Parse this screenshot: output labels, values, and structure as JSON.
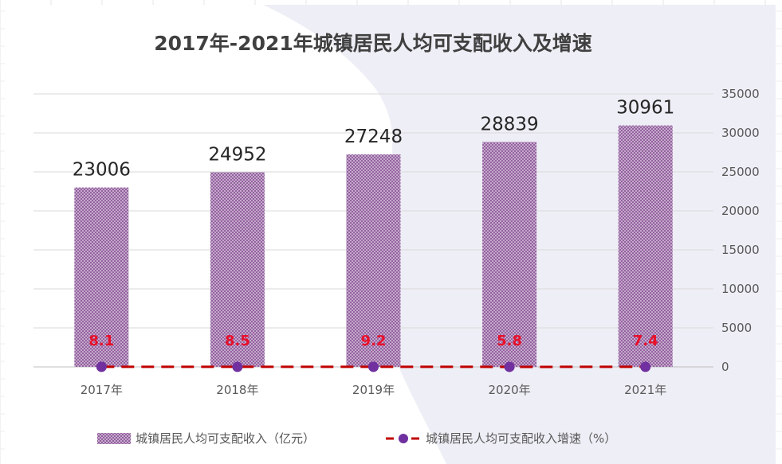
{
  "chart_data": {
    "type": "bar",
    "title": "2017年-2021年城镇居民人均可支配收入及增速",
    "categories": [
      "2017年",
      "2018年",
      "2019年",
      "2020年",
      "2021年"
    ],
    "series": [
      {
        "name": "城镇居民人均可支配收入（亿元）",
        "type": "bar",
        "axis": "right",
        "values": [
          23006,
          24952,
          27248,
          28839,
          30961
        ],
        "color": "#8e5a9a",
        "pattern": "crosshatch"
      },
      {
        "name": "城镇居民人均可支配收入增速（%）",
        "type": "line",
        "values": [
          8.1,
          8.5,
          9.2,
          5.8,
          7.4
        ],
        "line_color": "#c00000",
        "line_style": "dashed",
        "marker_color": "#7030a0",
        "label_color": "#e8102a"
      }
    ],
    "y_right": {
      "ticks": [
        "0",
        "5000",
        "10000",
        "15000",
        "20000",
        "25000",
        "30000",
        "35000"
      ],
      "ylim": [
        0,
        35000
      ]
    },
    "grid": true,
    "legend_position": "bottom"
  }
}
